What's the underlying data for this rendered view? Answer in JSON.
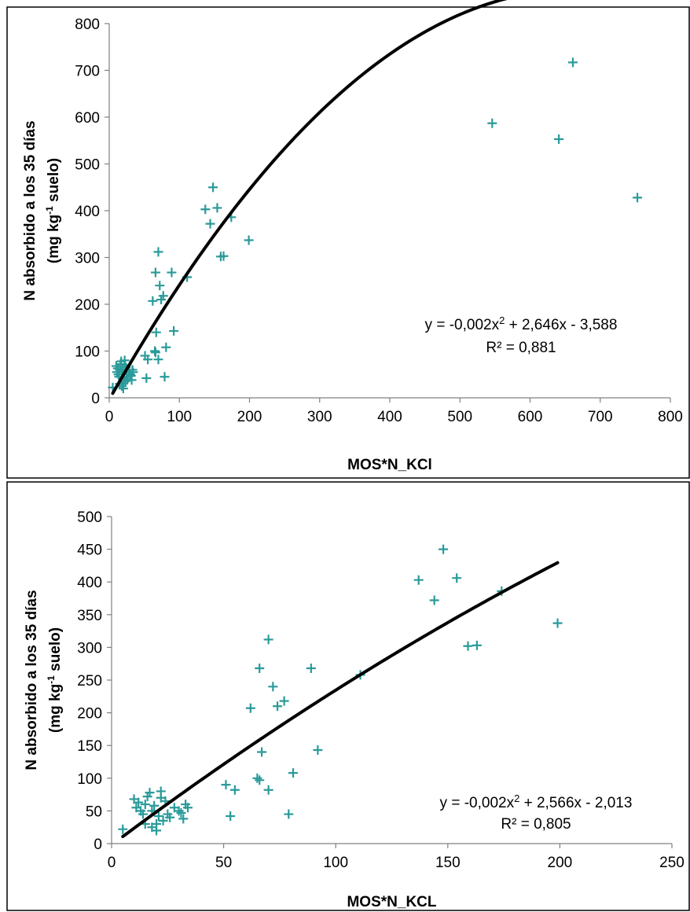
{
  "colors": {
    "points": "#2a9a9a",
    "trendline": "#000000",
    "axis": "#808080",
    "panel_border": "#000000"
  },
  "chart_data": [
    {
      "type": "scatter",
      "title": "",
      "xlabel": "MOS*N_KCl",
      "ylabel_line1": "N absorbido a los 35 días",
      "ylabel_line2_pre": "(mg kg",
      "ylabel_line2_sup": "-1",
      "ylabel_line2_post": " suelo)",
      "xlim": [
        0,
        800
      ],
      "ylim": [
        0,
        800
      ],
      "xticks": [
        0,
        100,
        200,
        300,
        400,
        500,
        600,
        700,
        800
      ],
      "yticks": [
        0,
        100,
        200,
        300,
        400,
        500,
        600,
        700,
        800
      ],
      "grid": false,
      "legend": "none",
      "marker": "plus",
      "trendline": {
        "type": "polynomial-2",
        "a": -0.002,
        "b": 2.646,
        "c": -3.588,
        "x_range": [
          5,
          753
        ]
      },
      "equation_text": {
        "pre": "y = -0,002x",
        "sup": "2",
        "post": " + 2,646x - 3,588",
        "r2": "R² = 0,881"
      },
      "points": [
        [
          5,
          22
        ],
        [
          10,
          68
        ],
        [
          11,
          55
        ],
        [
          12,
          63
        ],
        [
          13,
          50
        ],
        [
          14,
          45
        ],
        [
          15,
          60
        ],
        [
          15,
          30
        ],
        [
          16,
          72
        ],
        [
          17,
          78
        ],
        [
          18,
          25
        ],
        [
          18,
          50
        ],
        [
          19,
          58
        ],
        [
          20,
          30
        ],
        [
          20,
          20
        ],
        [
          21,
          42
        ],
        [
          22,
          80
        ],
        [
          22,
          70
        ],
        [
          23,
          35
        ],
        [
          24,
          65
        ],
        [
          25,
          45
        ],
        [
          26,
          40
        ],
        [
          28,
          55
        ],
        [
          30,
          50
        ],
        [
          31,
          47
        ],
        [
          32,
          38
        ],
        [
          33,
          60
        ],
        [
          34,
          55
        ],
        [
          51,
          90
        ],
        [
          53,
          42
        ],
        [
          55,
          82
        ],
        [
          62,
          207
        ],
        [
          65,
          100
        ],
        [
          66,
          97
        ],
        [
          66,
          268
        ],
        [
          67,
          140
        ],
        [
          70,
          312
        ],
        [
          70,
          82
        ],
        [
          72,
          240
        ],
        [
          74,
          210
        ],
        [
          77,
          218
        ],
        [
          79,
          45
        ],
        [
          81,
          108
        ],
        [
          89,
          268
        ],
        [
          92,
          143
        ],
        [
          111,
          258
        ],
        [
          137,
          403
        ],
        [
          144,
          372
        ],
        [
          148,
          450
        ],
        [
          154,
          406
        ],
        [
          159,
          302
        ],
        [
          163,
          303
        ],
        [
          174,
          386
        ],
        [
          199,
          337
        ],
        [
          546,
          587
        ],
        [
          641,
          553
        ],
        [
          661,
          717
        ],
        [
          753,
          428
        ]
      ]
    },
    {
      "type": "scatter",
      "title": "",
      "xlabel": "MOS*N_KCL",
      "ylabel_line1": "N absorbido a los 35 días",
      "ylabel_line2_pre": "(mg kg",
      "ylabel_line2_sup": "-1",
      "ylabel_line2_post": " suelo)",
      "xlim": [
        0,
        250
      ],
      "ylim": [
        0,
        500
      ],
      "xticks": [
        0,
        50,
        100,
        150,
        200,
        250
      ],
      "yticks": [
        0,
        50,
        100,
        150,
        200,
        250,
        300,
        350,
        400,
        450,
        500
      ],
      "grid": false,
      "legend": "none",
      "marker": "plus",
      "trendline": {
        "type": "polynomial-2",
        "a": -0.002,
        "b": 2.566,
        "c": -2.013,
        "x_range": [
          5,
          199
        ]
      },
      "equation_text": {
        "pre": "y = -0,002x",
        "sup": "2",
        "post": " + 2,566x - 2,013",
        "r2": "R² = 0,805"
      },
      "points": [
        [
          5,
          22
        ],
        [
          10,
          68
        ],
        [
          11,
          55
        ],
        [
          12,
          63
        ],
        [
          13,
          50
        ],
        [
          14,
          45
        ],
        [
          15,
          60
        ],
        [
          15,
          30
        ],
        [
          16,
          72
        ],
        [
          17,
          78
        ],
        [
          18,
          25
        ],
        [
          18,
          50
        ],
        [
          19,
          58
        ],
        [
          20,
          30
        ],
        [
          20,
          20
        ],
        [
          21,
          42
        ],
        [
          22,
          80
        ],
        [
          22,
          70
        ],
        [
          23,
          35
        ],
        [
          24,
          65
        ],
        [
          25,
          45
        ],
        [
          26,
          40
        ],
        [
          28,
          55
        ],
        [
          30,
          50
        ],
        [
          31,
          47
        ],
        [
          32,
          38
        ],
        [
          33,
          60
        ],
        [
          34,
          55
        ],
        [
          51,
          90
        ],
        [
          53,
          42
        ],
        [
          55,
          82
        ],
        [
          62,
          207
        ],
        [
          65,
          100
        ],
        [
          66,
          97
        ],
        [
          66,
          268
        ],
        [
          67,
          140
        ],
        [
          70,
          312
        ],
        [
          70,
          82
        ],
        [
          72,
          240
        ],
        [
          74,
          210
        ],
        [
          77,
          218
        ],
        [
          79,
          45
        ],
        [
          81,
          108
        ],
        [
          89,
          268
        ],
        [
          92,
          143
        ],
        [
          111,
          258
        ],
        [
          137,
          403
        ],
        [
          144,
          372
        ],
        [
          148,
          450
        ],
        [
          154,
          406
        ],
        [
          159,
          302
        ],
        [
          163,
          303
        ],
        [
          174,
          386
        ],
        [
          199,
          337
        ]
      ]
    }
  ]
}
